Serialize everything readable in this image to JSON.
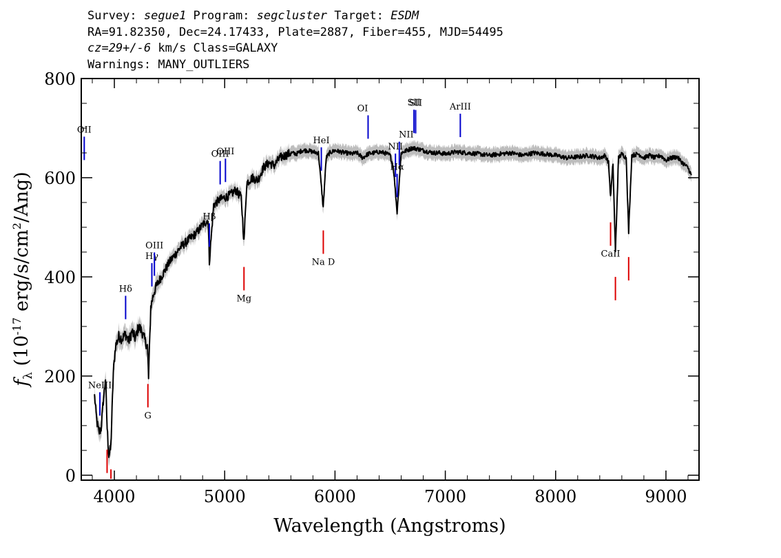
{
  "header": {
    "line1": {
      "survey_label": "Survey: ",
      "survey": "segue1",
      "program_label": " Program: ",
      "program": "segcluster",
      "target_label": " Target: ",
      "target": "ESDM"
    },
    "line2": "RA=91.82350, Dec=24.17433, Plate=2887, Fiber=455, MJD=54495",
    "line3": {
      "cz": "cz=29+/-6",
      "rest": " km/s Class=GALAXY"
    },
    "line4": "Warnings: MANY_OUTLIERS"
  },
  "colors": {
    "spectrum": "#000000",
    "error_band": "#bdbdbd",
    "emission": "#0000cc",
    "absorption": "#dd0000",
    "axes": "#000000"
  },
  "chart_data": {
    "type": "line",
    "xlabel": "Wavelength (Angstroms)",
    "ylabel": "fλ (10^-17 erg/s/cm^2/Ang)",
    "xlim": [
      3700,
      9300
    ],
    "ylim": [
      -10,
      800
    ],
    "xticks": [
      4000,
      5000,
      6000,
      7000,
      8000,
      9000
    ],
    "yticks": [
      0,
      200,
      400,
      600,
      800
    ],
    "grid": false,
    "series": [
      {
        "x": [
          3820,
          3840,
          3860,
          3880,
          3900,
          3920,
          3935,
          3950,
          3968,
          3990,
          4010,
          4040,
          4070,
          4100,
          4130,
          4160,
          4190,
          4220,
          4250,
          4280,
          4300,
          4310,
          4330,
          4360,
          4400,
          4450,
          4500,
          4550,
          4600,
          4650,
          4700,
          4750,
          4800,
          4850,
          4861,
          4900,
          4950,
          5000,
          5050,
          5100,
          5150,
          5175,
          5200,
          5250,
          5300,
          5350,
          5400,
          5450,
          5500,
          5550,
          5600,
          5650,
          5700,
          5750,
          5800,
          5850,
          5893,
          5920,
          5950,
          6000,
          6050,
          6100,
          6150,
          6200,
          6250,
          6300,
          6350,
          6400,
          6450,
          6500,
          6530,
          6563,
          6600,
          6650,
          6700,
          6750,
          6800,
          6850,
          6900,
          6950,
          7000,
          7100,
          7200,
          7300,
          7400,
          7500,
          7600,
          7700,
          7800,
          7900,
          8000,
          8100,
          8200,
          8300,
          8400,
          8450,
          8480,
          8498,
          8520,
          8542,
          8570,
          8600,
          8640,
          8662,
          8690,
          8750,
          8800,
          8850,
          8900,
          8950,
          9000,
          9050,
          9100,
          9150,
          9200,
          9230
        ],
        "y": [
          160,
          110,
          85,
          95,
          150,
          195,
          95,
          40,
          55,
          205,
          260,
          280,
          275,
          285,
          270,
          290,
          275,
          300,
          290,
          270,
          260,
          195,
          340,
          370,
          390,
          410,
          430,
          445,
          460,
          470,
          480,
          490,
          505,
          515,
          430,
          545,
          555,
          560,
          565,
          575,
          560,
          470,
          590,
          600,
          595,
          620,
          630,
          625,
          640,
          645,
          650,
          648,
          655,
          655,
          652,
          650,
          540,
          640,
          650,
          655,
          652,
          650,
          648,
          650,
          640,
          648,
          650,
          652,
          650,
          645,
          620,
          530,
          650,
          655,
          660,
          658,
          655,
          652,
          650,
          650,
          648,
          652,
          650,
          648,
          645,
          648,
          650,
          645,
          650,
          648,
          645,
          640,
          642,
          645,
          640,
          645,
          630,
          560,
          630,
          450,
          640,
          648,
          640,
          490,
          645,
          648,
          640,
          645,
          640,
          645,
          635,
          640,
          642,
          630,
          620,
          605
        ]
      }
    ],
    "emission_lines": [
      {
        "label": "OII",
        "x": 3727
      },
      {
        "label": "NeIII",
        "x": 3869
      },
      {
        "label": "Hδ",
        "x": 4102
      },
      {
        "label": "Hγ",
        "x": 4340
      },
      {
        "label": "OIII",
        "x": 4363
      },
      {
        "label": "Hβ",
        "x": 4861
      },
      {
        "label": "OIII",
        "x": 4959
      },
      {
        "label": "OIII",
        "x": 5007
      },
      {
        "label": "HeI",
        "x": 5876
      },
      {
        "label": "OI",
        "x": 6300
      },
      {
        "label": "NII",
        "x": 6548
      },
      {
        "label": "Hα",
        "x": 6563
      },
      {
        "label": "NII",
        "x": 6583
      },
      {
        "label": "SII",
        "x": 6716
      },
      {
        "label": "SII",
        "x": 6731
      },
      {
        "label": "ArIII",
        "x": 7136
      }
    ],
    "absorption_lines": [
      {
        "label": "",
        "x": 3934
      },
      {
        "label": "",
        "x": 3969
      },
      {
        "label": "G",
        "x": 4304
      },
      {
        "label": "Mg",
        "x": 5175
      },
      {
        "label": "Na D",
        "x": 5894
      },
      {
        "label": "CaII",
        "x": 8498
      },
      {
        "label": "",
        "x": 8542
      },
      {
        "label": "",
        "x": 8662
      }
    ]
  }
}
